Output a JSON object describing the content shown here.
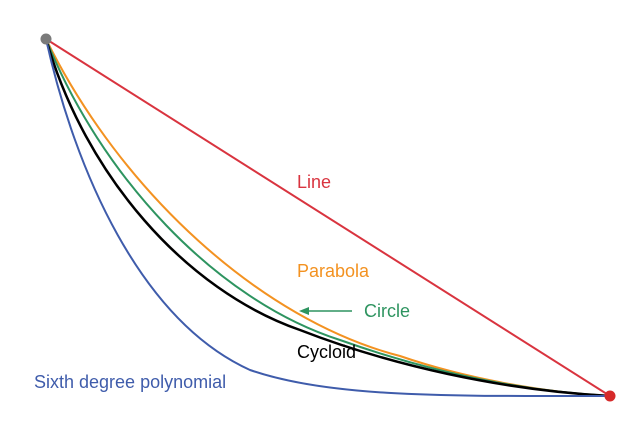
{
  "colors": {
    "line": "#d9343f",
    "parabola": "#f39221",
    "circle": "#2e9460",
    "cycloid": "#000000",
    "polynomial": "#3f5cab",
    "start_point": "#7a7a7a",
    "end_point": "#d62a2a"
  },
  "curves": [
    {
      "key": "line",
      "label": "Line"
    },
    {
      "key": "parabola",
      "label": "Parabola"
    },
    {
      "key": "circle",
      "label": "Circle"
    },
    {
      "key": "cycloid",
      "label": "Cycloid"
    },
    {
      "key": "polynomial",
      "label": "Sixth degree polynomial"
    }
  ]
}
